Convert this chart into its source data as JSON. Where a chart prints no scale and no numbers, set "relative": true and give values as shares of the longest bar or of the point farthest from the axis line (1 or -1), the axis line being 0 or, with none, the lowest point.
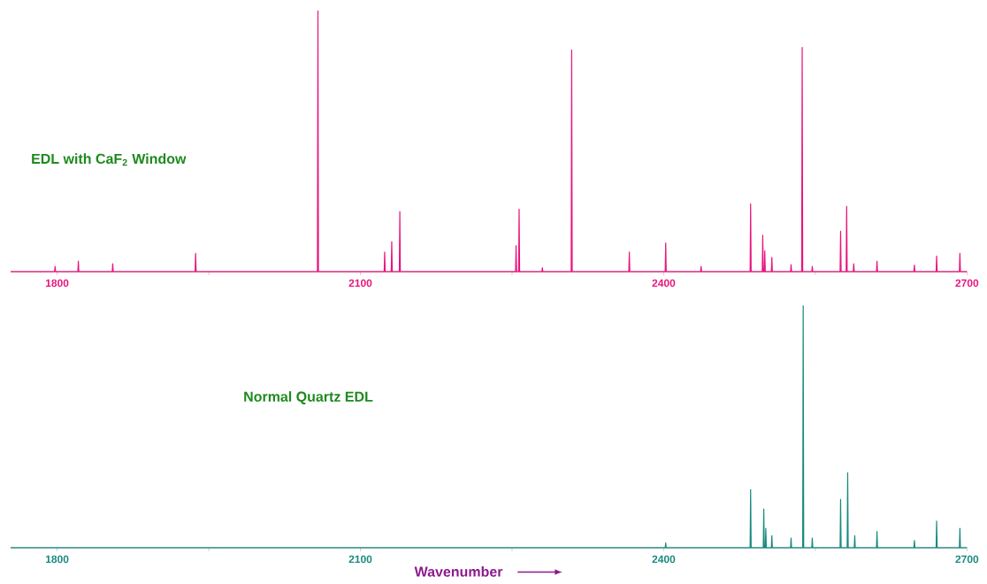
{
  "chart_data": [
    {
      "type": "line",
      "relative": true,
      "xlim": [
        1754,
        2700
      ],
      "xticks": [
        1800,
        {
          "value": 1950,
          "label": null
        },
        2100,
        {
          "value": 2250,
          "label": null
        },
        2400,
        {
          "value": 2550,
          "label": null
        },
        2700
      ],
      "annotations": [
        "EDL with CaF$_{2}$ Window"
      ],
      "series": [
        {
          "color": "#e8157c",
          "x": [
            1754,
            1797.5,
            1798,
            1798.5,
            1820.5,
            1821,
            1821.5,
            1854.5,
            1855,
            1855.5,
            1936.5,
            1937,
            1937.5,
            2057.5,
            2058,
            2058.5,
            2123.5,
            2124,
            2124.5,
            2130.5,
            2131,
            2131.5,
            2138.5,
            2139,
            2139.5,
            2253.5,
            2254,
            2254.5,
            2256.5,
            2257,
            2257.5,
            2279.5,
            2280,
            2280.5,
            2308.5,
            2309,
            2309.5,
            2365.5,
            2366,
            2366.5,
            2401.5,
            2402,
            2402.5,
            2436.5,
            2437,
            2437.5,
            2485.5,
            2486,
            2486.5,
            2497.5,
            2498,
            2498.5,
            2499.5,
            2500,
            2500.5,
            2506.5,
            2507,
            2507.5,
            2525.5,
            2526,
            2526.5,
            2536.5,
            2537,
            2537.5,
            2546.5,
            2547,
            2547.5,
            2574.5,
            2575,
            2575.5,
            2580.5,
            2581,
            2581.5,
            2587.5,
            2588,
            2588.5,
            2610.5,
            2611,
            2611.5,
            2647.5,
            2648,
            2648.5,
            2669.5,
            2670,
            2670.5,
            2692.5,
            2693,
            2693.5,
            2700
          ],
          "values": [
            0,
            0,
            0.02,
            0,
            0,
            0.04,
            0,
            0,
            0.03,
            0,
            0,
            0.07,
            0,
            0,
            1,
            0,
            0,
            0.075,
            0,
            0,
            0.115,
            0,
            0,
            0.23,
            0,
            0,
            0.1,
            0,
            0,
            0.24,
            0,
            0,
            0.015,
            0,
            0,
            0.85,
            0,
            0,
            0.075,
            0,
            0,
            0.11,
            0,
            0,
            0.02,
            0,
            0,
            0.26,
            0,
            0,
            0.14,
            0,
            0,
            0.08,
            0,
            0,
            0.055,
            0,
            0,
            0.027,
            0,
            0,
            0.86,
            0,
            0,
            0.02,
            0,
            0,
            0.155,
            0,
            0,
            0.25,
            0,
            0,
            0.03,
            0,
            0,
            0.04,
            0,
            0,
            0.025,
            0,
            0,
            0.06,
            0,
            0,
            0.07,
            0,
            0
          ]
        }
      ]
    },
    {
      "type": "line",
      "relative": true,
      "xlim": [
        1754,
        2700
      ],
      "xticks": [
        1800,
        {
          "value": 1950,
          "label": null
        },
        2100,
        {
          "value": 2250,
          "label": null
        },
        2400,
        {
          "value": 2550,
          "label": null
        },
        2700
      ],
      "xlabel": "Wavenumber",
      "annotations": [
        "Normal Quartz EDL"
      ],
      "series": [
        {
          "color": "#178a80",
          "x": [
            1754,
            2401.5,
            2402,
            2402.5,
            2485.5,
            2486,
            2486.5,
            2498.5,
            2499,
            2499.5,
            2500.5,
            2501,
            2501.5,
            2506.5,
            2507,
            2507.5,
            2525.5,
            2526,
            2526.5,
            2537.5,
            2538,
            2538.5,
            2546.5,
            2547,
            2547.5,
            2574.5,
            2575,
            2575.5,
            2581.5,
            2582,
            2582.5,
            2588.5,
            2589,
            2589.5,
            2610.5,
            2611,
            2611.5,
            2647.5,
            2648,
            2648.5,
            2669.5,
            2670,
            2670.5,
            2692.5,
            2693,
            2693.5,
            2700
          ],
          "values": [
            0,
            0,
            0.02,
            0,
            0,
            0.24,
            0,
            0,
            0.16,
            0,
            0,
            0.08,
            0,
            0,
            0.05,
            0,
            0,
            0.04,
            0,
            0,
            1,
            0,
            0,
            0.04,
            0,
            0,
            0.2,
            0,
            0,
            0.31,
            0,
            0,
            0.05,
            0,
            0,
            0.067,
            0,
            0,
            0.03,
            0,
            0,
            0.11,
            0,
            0,
            0.08,
            0,
            0
          ]
        }
      ]
    }
  ]
}
